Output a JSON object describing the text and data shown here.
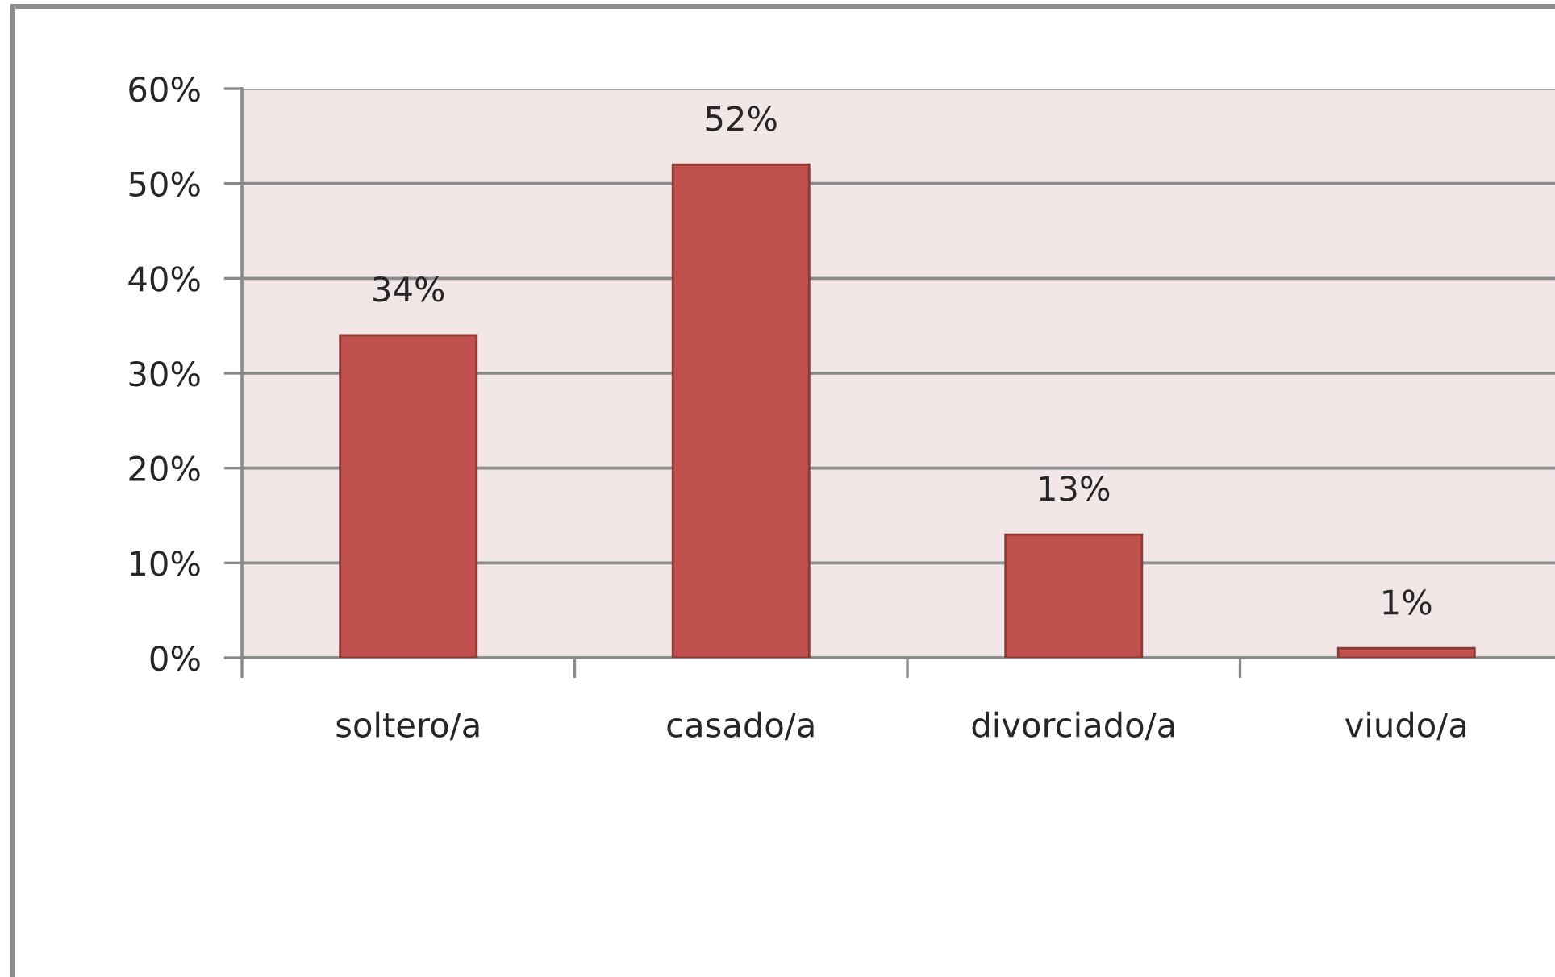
{
  "chart_data": {
    "type": "bar",
    "categories": [
      "soltero/a",
      "casado/a",
      "divorciado/a",
      "viudo/a"
    ],
    "values": [
      34,
      52,
      13,
      1
    ],
    "color": "#c0504d",
    "value_labels": [
      "34%",
      "52%",
      "13%",
      "1%"
    ],
    "ylim": [
      0,
      60
    ],
    "yticks": [
      {
        "value": 0,
        "label": "0%"
      },
      {
        "value": 10,
        "label": "10%"
      },
      {
        "value": 20,
        "label": "20%"
      },
      {
        "value": 30,
        "label": "30%"
      },
      {
        "value": 40,
        "label": "40%"
      },
      {
        "value": 50,
        "label": "50%"
      },
      {
        "value": 60,
        "label": "60%"
      }
    ],
    "grid": "y"
  }
}
